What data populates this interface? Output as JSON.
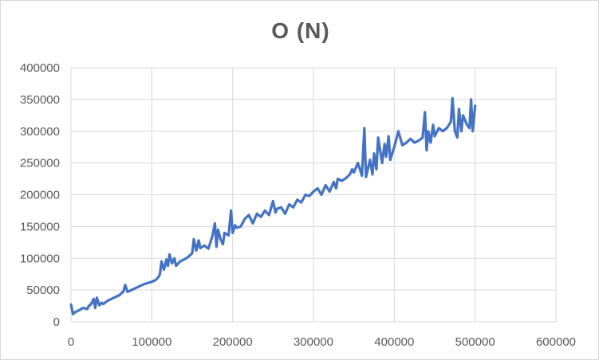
{
  "chart_data": {
    "type": "line",
    "title": "O (N)",
    "xlabel": "",
    "ylabel": "",
    "xlim": [
      0,
      600000
    ],
    "ylim": [
      0,
      400000
    ],
    "x_ticks": [
      "0",
      "100000",
      "200000",
      "300000",
      "400000",
      "500000",
      "600000"
    ],
    "y_ticks": [
      "0",
      "50000",
      "100000",
      "150000",
      "200000",
      "250000",
      "300000",
      "350000",
      "400000"
    ],
    "grid": "vertical and horizontal",
    "legend": "none",
    "series": [
      {
        "color": "#4472c4",
        "x": [
          0,
          2500,
          5000,
          10000,
          15000,
          20000,
          22000,
          25000,
          28000,
          30000,
          32000,
          35000,
          38000,
          40000,
          45000,
          50000,
          55000,
          60000,
          65000,
          67000,
          70000,
          75000,
          80000,
          85000,
          90000,
          95000,
          100000,
          105000,
          108000,
          110000,
          112000,
          115000,
          118000,
          120000,
          122000,
          125000,
          128000,
          130000,
          135000,
          140000,
          145000,
          150000,
          152000,
          155000,
          158000,
          160000,
          165000,
          170000,
          175000,
          178000,
          180000,
          182000,
          185000,
          188000,
          190000,
          195000,
          198000,
          200000,
          203000,
          205000,
          210000,
          215000,
          220000,
          225000,
          230000,
          235000,
          240000,
          245000,
          250000,
          253000,
          255000,
          260000,
          265000,
          270000,
          275000,
          280000,
          285000,
          290000,
          295000,
          300000,
          305000,
          310000,
          315000,
          320000,
          325000,
          328000,
          330000,
          335000,
          340000,
          345000,
          348000,
          350000,
          355000,
          360000,
          363000,
          365000,
          370000,
          373000,
          375000,
          378000,
          380000,
          385000,
          388000,
          390000,
          393000,
          395000,
          400000,
          405000,
          410000,
          415000,
          420000,
          425000,
          430000,
          435000,
          438000,
          440000,
          442000,
          445000,
          448000,
          450000,
          455000,
          460000,
          465000,
          470000,
          472000,
          475000,
          478000,
          480000,
          483000,
          485000,
          490000,
          493000,
          495000,
          497000,
          500000
        ],
        "y": [
          27000,
          12000,
          15000,
          18000,
          22000,
          20000,
          25000,
          28000,
          36000,
          22000,
          38000,
          26000,
          30000,
          28000,
          33000,
          36000,
          39000,
          42000,
          48000,
          58000,
          47000,
          50000,
          53000,
          56000,
          59000,
          61000,
          63000,
          66000,
          70000,
          75000,
          95000,
          82000,
          98000,
          88000,
          106000,
          92000,
          100000,
          88000,
          95000,
          98000,
          102000,
          108000,
          130000,
          112000,
          128000,
          116000,
          120000,
          115000,
          135000,
          155000,
          118000,
          145000,
          130000,
          122000,
          140000,
          136000,
          175000,
          140000,
          152000,
          148000,
          150000,
          162000,
          168000,
          155000,
          170000,
          165000,
          175000,
          168000,
          190000,
          172000,
          178000,
          180000,
          170000,
          185000,
          180000,
          192000,
          188000,
          200000,
          198000,
          205000,
          210000,
          200000,
          215000,
          205000,
          220000,
          210000,
          225000,
          222000,
          226000,
          232000,
          240000,
          235000,
          250000,
          230000,
          305000,
          228000,
          255000,
          232000,
          265000,
          240000,
          290000,
          250000,
          280000,
          260000,
          292000,
          255000,
          275000,
          300000,
          278000,
          282000,
          288000,
          282000,
          285000,
          290000,
          330000,
          270000,
          300000,
          282000,
          310000,
          292000,
          305000,
          300000,
          305000,
          315000,
          352000,
          300000,
          290000,
          335000,
          300000,
          325000,
          310000,
          305000,
          350000,
          300000,
          340000
        ]
      }
    ]
  }
}
